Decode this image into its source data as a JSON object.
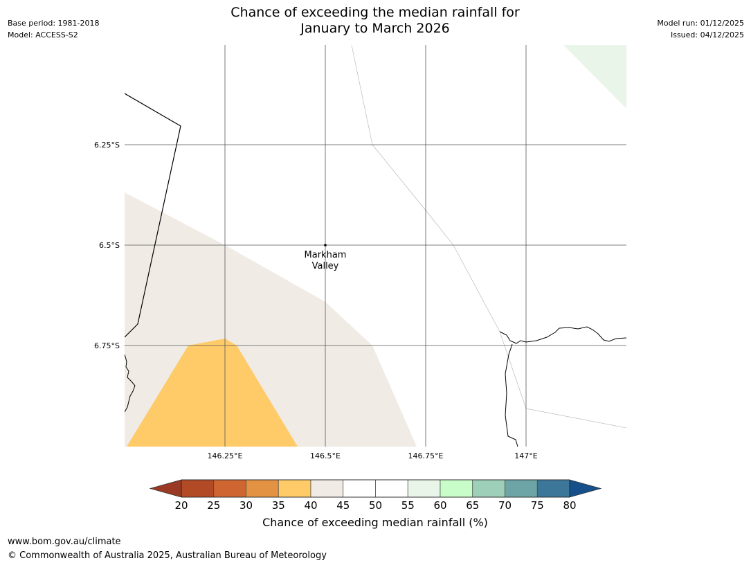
{
  "header": {
    "title_line1": "Chance of exceeding the median rainfall for",
    "title_line2": "January to March 2026",
    "base_period": "Base period: 1981-2018",
    "model": "Model: ACCESS-S2",
    "model_run": "Model run: 01/12/2025",
    "issued": "Issued: 04/12/2025"
  },
  "map": {
    "lat_labels": [
      "6.25°S",
      "6.5°S",
      "6.75°S"
    ],
    "lon_labels": [
      "146.25°E",
      "146.5°E",
      "146.75°E",
      "147°E"
    ],
    "place": {
      "line1": "Markham",
      "line2": "Valley"
    },
    "regions": [
      {
        "category": "40-45",
        "color": "#f0ebe5"
      },
      {
        "category": "35-40",
        "color": "#fecb68"
      },
      {
        "category": "55-60",
        "color": "#eaf5e9"
      }
    ]
  },
  "colorbar": {
    "title": "Chance of exceeding median rainfall (%)",
    "ticks": [
      "20",
      "25",
      "30",
      "35",
      "40",
      "45",
      "50",
      "55",
      "60",
      "65",
      "70",
      "75",
      "80"
    ],
    "low_extend_color": "#9a3a24",
    "high_extend_color": "#16508a",
    "colors": [
      "#b24a26",
      "#cf6530",
      "#e39244",
      "#fecb68",
      "#f0ebe5",
      "#ffffff",
      "#ffffff",
      "#eaf5e9",
      "#c8fdc9",
      "#9dcfb9",
      "#6da5a6",
      "#3c7799"
    ]
  },
  "footer": {
    "url": "www.bom.gov.au/climate",
    "copyright": "© Commonwealth of Australia 2025, Australian Bureau of Meteorology"
  }
}
